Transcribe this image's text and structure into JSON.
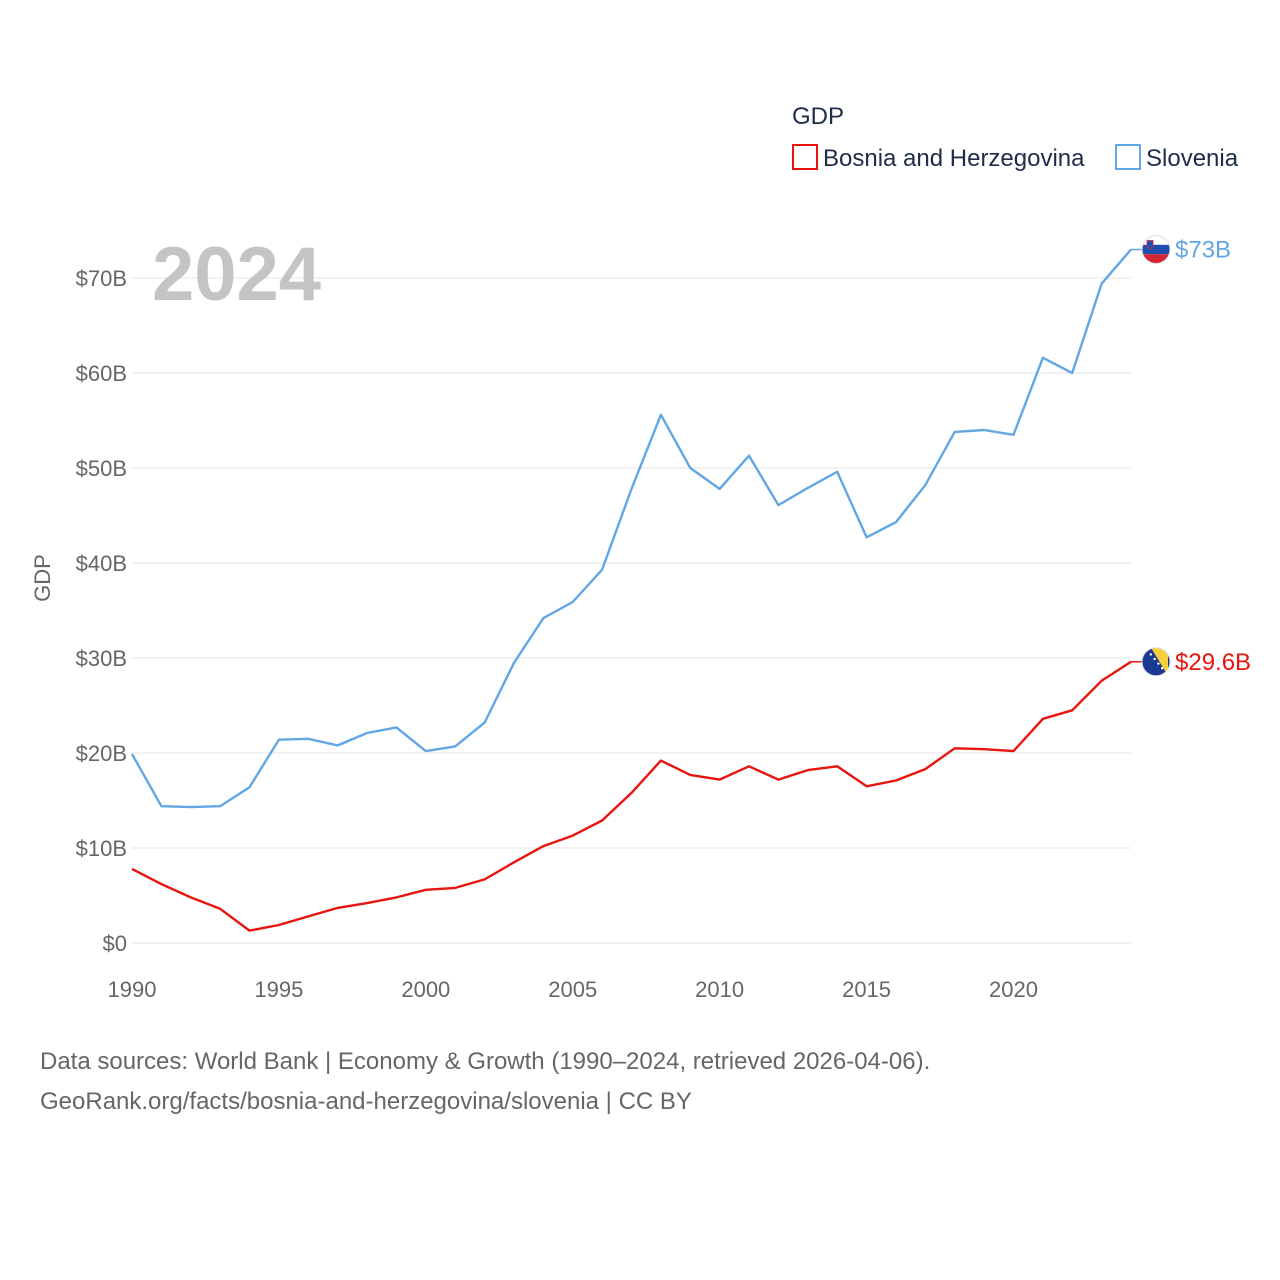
{
  "chart_data": {
    "type": "line",
    "title": "GDP",
    "ylabel": "GDP",
    "xlabel": "",
    "year_label": "2024",
    "xlim": [
      1990,
      2024
    ],
    "ylim": [
      0,
      73
    ],
    "x_ticks": [
      1990,
      1995,
      2000,
      2005,
      2010,
      2015,
      2020
    ],
    "x_tick_labels": [
      "1990",
      "1995",
      "2000",
      "2005",
      "2010",
      "2015",
      "2020"
    ],
    "y_ticks": [
      0,
      10,
      20,
      30,
      40,
      50,
      60,
      70
    ],
    "y_tick_labels": [
      "$0",
      "$10B",
      "$20B",
      "$30B",
      "$40B",
      "$50B",
      "$60B",
      "$70B"
    ],
    "grid": true,
    "legend_position": "top-right",
    "x": [
      1990,
      1991,
      1992,
      1993,
      1994,
      1995,
      1996,
      1997,
      1998,
      1999,
      2000,
      2001,
      2002,
      2003,
      2004,
      2005,
      2006,
      2007,
      2008,
      2009,
      2010,
      2011,
      2012,
      2013,
      2014,
      2015,
      2016,
      2017,
      2018,
      2019,
      2020,
      2021,
      2022,
      2023,
      2024
    ],
    "series": [
      {
        "name": "Bosnia and Herzegovina",
        "color": "#e8140f",
        "end_label": "$29.6B",
        "flag": "bosnia-flag",
        "values": [
          7.8,
          6.2,
          4.8,
          3.6,
          1.3,
          1.9,
          2.8,
          3.7,
          4.2,
          4.8,
          5.6,
          5.8,
          6.7,
          8.5,
          10.2,
          11.3,
          12.9,
          15.8,
          19.2,
          17.7,
          17.2,
          18.6,
          17.2,
          18.2,
          18.6,
          16.5,
          17.1,
          18.3,
          20.5,
          20.4,
          20.2,
          23.6,
          24.5,
          27.6,
          29.6
        ]
      },
      {
        "name": "Slovenia",
        "color": "#62a7e3",
        "end_label": "$73B",
        "flag": "slovenia-flag",
        "values": [
          19.9,
          14.4,
          14.3,
          14.4,
          16.4,
          21.4,
          21.5,
          20.8,
          22.1,
          22.7,
          20.2,
          20.7,
          23.2,
          29.5,
          34.2,
          35.9,
          39.3,
          47.8,
          55.6,
          50.0,
          47.8,
          51.3,
          46.1,
          47.9,
          49.6,
          42.7,
          44.3,
          48.2,
          53.8,
          54.0,
          53.5,
          61.6,
          60.0,
          69.4,
          73.0
        ]
      }
    ]
  },
  "footer": {
    "line1": "Data sources: World Bank | Economy & Growth (1990–2024, retrieved 2026-04-06).",
    "line2": "GeoRank.org/facts/bosnia-and-herzegovina/slovenia | CC BY"
  }
}
